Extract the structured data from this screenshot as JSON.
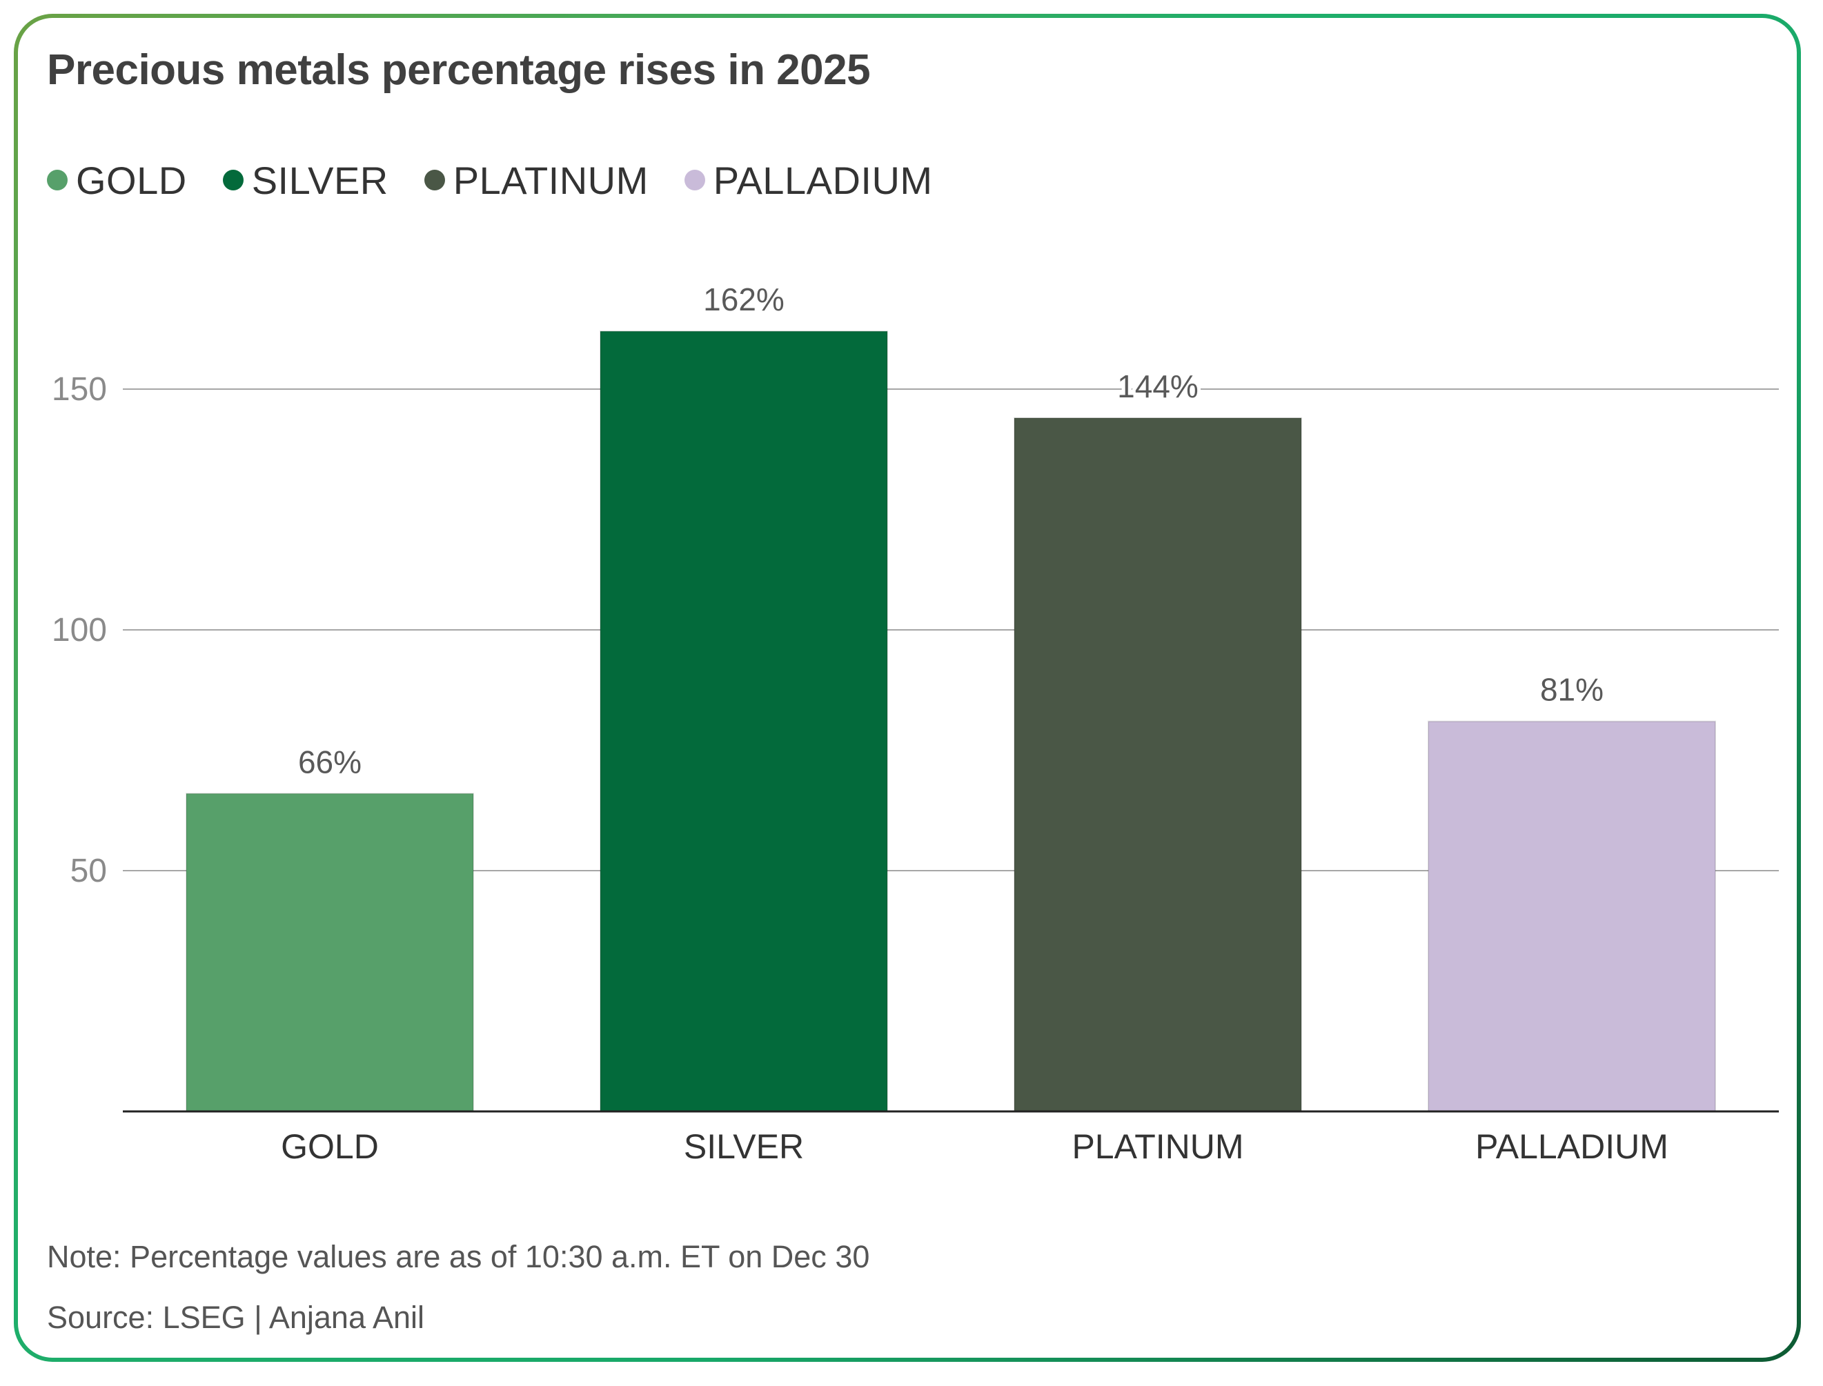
{
  "title": "Precious metals percentage rises in 2025",
  "legend": [
    {
      "label": "GOLD",
      "color": "#57a06a"
    },
    {
      "label": "SILVER",
      "color": "#036a3b"
    },
    {
      "label": "PLATINUM",
      "color": "#4a5746"
    },
    {
      "label": "PALLADIUM",
      "color": "#c9bbd9"
    }
  ],
  "chart_data": {
    "type": "bar",
    "title": "Precious metals percentage rises in 2025",
    "categories": [
      "GOLD",
      "SILVER",
      "PLATINUM",
      "PALLADIUM"
    ],
    "values": [
      66,
      162,
      144,
      81
    ],
    "data_labels": [
      "66%",
      "162%",
      "144%",
      "81%"
    ],
    "colors": [
      "#57a06a",
      "#036a3b",
      "#4a5746",
      "#c9bbd9"
    ],
    "ylim": [
      0,
      180
    ],
    "yticks": [
      50,
      100,
      150
    ],
    "ytick_labels": [
      "50",
      "100",
      "150"
    ],
    "xlabel": "",
    "ylabel": "",
    "grid": true,
    "legend_position": "top-left"
  },
  "footer": {
    "note": "Note: Percentage values are as of 10:30 a.m. ET on Dec 30",
    "source": "Source: LSEG | Anjana Anil"
  }
}
